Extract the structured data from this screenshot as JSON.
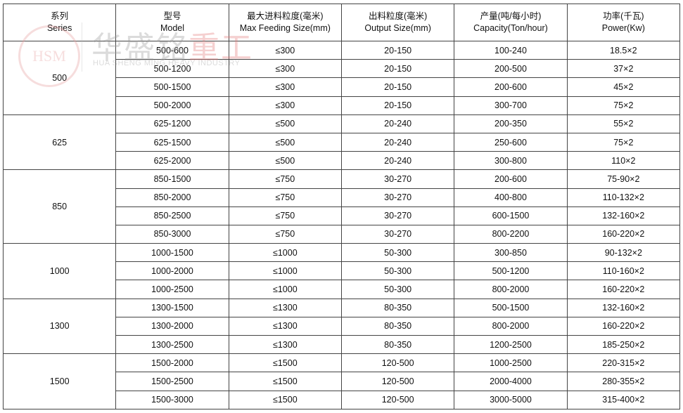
{
  "watermark": {
    "logo": "HSM",
    "cn_gray": "华盛铭",
    "cn_red": "重工",
    "en": "HUA SHENG MING HEAVY INDUSTRY"
  },
  "headers": [
    {
      "cn": "系列",
      "en": "Series"
    },
    {
      "cn": "型号",
      "en": "Model"
    },
    {
      "cn": "最大进料粒度(毫米)",
      "en": "Max Feeding Size(mm)"
    },
    {
      "cn": "出料粒度(毫米)",
      "en": "Output Size(mm)"
    },
    {
      "cn": "产量(吨/每小时)",
      "en": "Capacity(Ton/hour)"
    },
    {
      "cn": "功率(千瓦)",
      "en": "Power(Kw)"
    }
  ],
  "groups": [
    {
      "series": "500",
      "rows": [
        [
          "500-600",
          "≤300",
          "20-150",
          "100-240",
          "18.5×2"
        ],
        [
          "500-1200",
          "≤300",
          "20-150",
          "200-500",
          "37×2"
        ],
        [
          "500-1500",
          "≤300",
          "20-150",
          "200-600",
          "45×2"
        ],
        [
          "500-2000",
          "≤300",
          "20-150",
          "300-700",
          "75×2"
        ]
      ]
    },
    {
      "series": "625",
      "rows": [
        [
          "625-1200",
          "≤500",
          "20-240",
          "200-350",
          "55×2"
        ],
        [
          "625-1500",
          "≤500",
          "20-240",
          "250-600",
          "75×2"
        ],
        [
          "625-2000",
          "≤500",
          "20-240",
          "300-800",
          "110×2"
        ]
      ]
    },
    {
      "series": "850",
      "rows": [
        [
          "850-1500",
          "≤750",
          "30-270",
          "200-600",
          "75-90×2"
        ],
        [
          "850-2000",
          "≤750",
          "30-270",
          "400-800",
          "110-132×2"
        ],
        [
          "850-2500",
          "≤750",
          "30-270",
          "600-1500",
          "132-160×2"
        ],
        [
          "850-3000",
          "≤750",
          "30-270",
          "800-2200",
          "160-220×2"
        ]
      ]
    },
    {
      "series": "1000",
      "rows": [
        [
          "1000-1500",
          "≤1000",
          "50-300",
          "300-850",
          "90-132×2"
        ],
        [
          "1000-2000",
          "≤1000",
          "50-300",
          "500-1200",
          "110-160×2"
        ],
        [
          "1000-2500",
          "≤1000",
          "50-300",
          "800-2000",
          "160-220×2"
        ]
      ]
    },
    {
      "series": "1300",
      "rows": [
        [
          "1300-1500",
          "≤1300",
          "80-350",
          "500-1500",
          "132-160×2"
        ],
        [
          "1300-2000",
          "≤1300",
          "80-350",
          "800-2000",
          "160-220×2"
        ],
        [
          "1300-2500",
          "≤1300",
          "80-350",
          "1200-2500",
          "185-250×2"
        ]
      ]
    },
    {
      "series": "1500",
      "rows": [
        [
          "1500-2000",
          "≤1500",
          "120-500",
          "1000-2500",
          "220-315×2"
        ],
        [
          "1500-2500",
          "≤1500",
          "120-500",
          "2000-4000",
          "280-355×2"
        ],
        [
          "1500-3000",
          "≤1500",
          "120-500",
          "3000-5000",
          "315-400×2"
        ]
      ]
    }
  ]
}
